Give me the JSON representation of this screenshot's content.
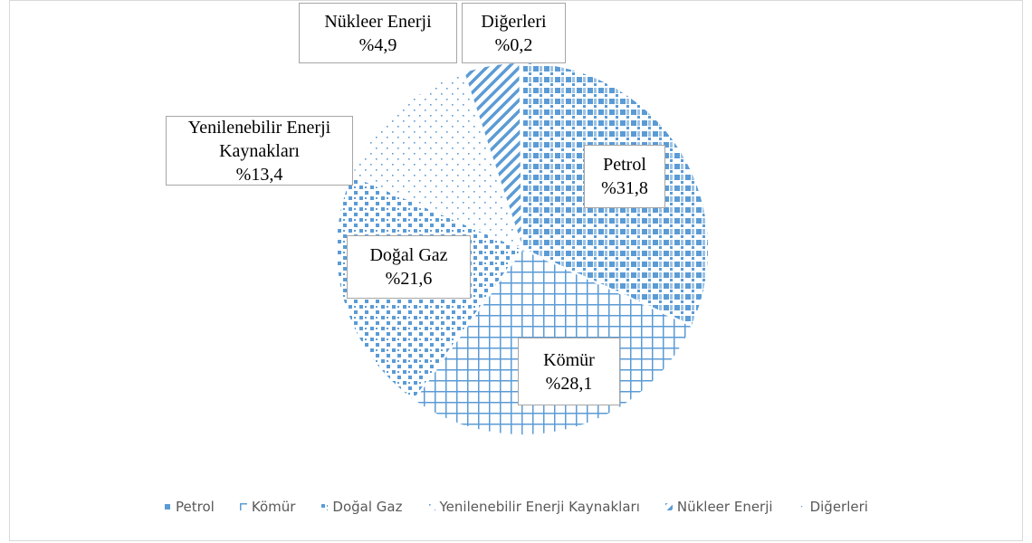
{
  "chart_data": {
    "type": "pie",
    "categories": [
      "Petrol",
      "Kömür",
      "Doğal Gaz",
      "Yenilenebilir Enerji Kaynakları",
      "Nükleer Enerji",
      "Diğerleri"
    ],
    "values": [
      31.8,
      28.1,
      21.6,
      13.4,
      4.9,
      0.2
    ],
    "value_labels": [
      "%31,8",
      "%28,1",
      "%21,6",
      "%13,4",
      "%4,9",
      "%0,2"
    ],
    "color": "#5b9bd5",
    "legend": "bottom"
  }
}
